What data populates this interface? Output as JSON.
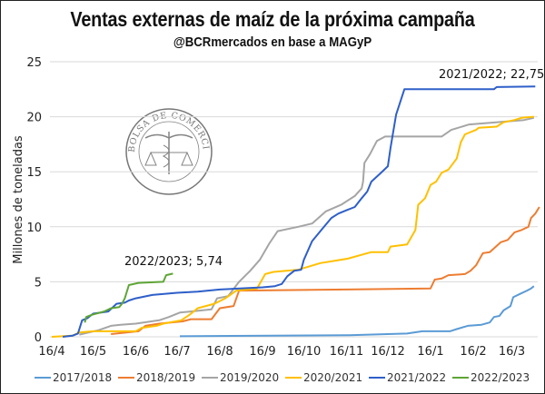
{
  "chart_data": {
    "type": "line",
    "title": "Ventas externas de maíz de la próxima campaña",
    "subtitle": "@BCRmercados en base a MAGyP",
    "ylabel": "Millones de toneladas",
    "xlabel": "",
    "ylim": [
      0,
      25
    ],
    "yticks": [
      "0",
      "5",
      "10",
      "15",
      "20",
      "25"
    ],
    "xticks": [
      "16/4",
      "16/5",
      "16/6",
      "16/7",
      "16/8",
      "16/9",
      "16/10",
      "16/11",
      "16/12",
      "16/1",
      "16/2",
      "16/3"
    ],
    "grid": true,
    "legend": "bottom",
    "logo_text": "BOLSA DE COMERCIO DE ROSARIO",
    "annotations": [
      {
        "text": "2021/2022; 22,75",
        "series": "2021/2022"
      },
      {
        "text": "2022/2023; 5,74",
        "series": "2022/2023"
      }
    ],
    "series": [
      {
        "name": "2017/2018",
        "color": "#5b9bd5",
        "points": [
          [
            "18/7",
            0.05
          ],
          [
            "18/11",
            0.15
          ],
          [
            "30/12",
            0.3
          ],
          [
            "10/1",
            0.5
          ],
          [
            "30/1",
            0.5
          ],
          [
            "4/2",
            0.7
          ],
          [
            "12/2",
            1.0
          ],
          [
            "22/2",
            1.1
          ],
          [
            "28/2",
            1.3
          ],
          [
            "3/3",
            1.8
          ],
          [
            "7/3",
            1.9
          ],
          [
            "10/3",
            2.4
          ],
          [
            "15/3",
            2.8
          ],
          [
            "17/3",
            3.6
          ],
          [
            "22/3",
            3.9
          ],
          [
            "27/3",
            4.2
          ],
          [
            "30/3",
            4.4
          ],
          [
            "1/4",
            4.6
          ]
        ]
      },
      {
        "name": "2018/2019",
        "color": "#ed7d31",
        "points": [
          [
            "29/5",
            0.25
          ],
          [
            "18/6",
            0.5
          ],
          [
            "23/6",
            1.0
          ],
          [
            "3/7",
            1.2
          ],
          [
            "20/7",
            1.4
          ],
          [
            "26/7",
            1.6
          ],
          [
            "10/8",
            1.6
          ],
          [
            "16/8",
            2.6
          ],
          [
            "26/8",
            2.8
          ],
          [
            "30/8",
            4.2
          ],
          [
            "15/11",
            4.3
          ],
          [
            "16/1",
            4.4
          ],
          [
            "19/1",
            5.2
          ],
          [
            "24/1",
            5.3
          ],
          [
            "29/1",
            5.6
          ],
          [
            "10/2",
            5.7
          ],
          [
            "14/2",
            6.0
          ],
          [
            "18/2",
            6.5
          ],
          [
            "23/2",
            7.6
          ],
          [
            "28/2",
            7.7
          ],
          [
            "8/3",
            8.6
          ],
          [
            "13/3",
            8.8
          ],
          [
            "18/3",
            9.5
          ],
          [
            "23/3",
            9.7
          ],
          [
            "28/3",
            10.0
          ],
          [
            "30/3",
            10.8
          ],
          [
            "2/4",
            11.2
          ],
          [
            "5/4",
            11.8
          ]
        ]
      },
      {
        "name": "2019/2020",
        "color": "#a5a5a5",
        "points": [
          [
            "6/5",
            0.2
          ],
          [
            "20/5",
            0.6
          ],
          [
            "29/5",
            1.0
          ],
          [
            "5/6",
            1.1
          ],
          [
            "16/6",
            1.2
          ],
          [
            "3/7",
            1.5
          ],
          [
            "10/7",
            1.8
          ],
          [
            "18/7",
            2.2
          ],
          [
            "26/7",
            2.3
          ],
          [
            "10/8",
            2.5
          ],
          [
            "14/8",
            3.5
          ],
          [
            "22/8",
            3.7
          ],
          [
            "30/8",
            5.0
          ],
          [
            "7/9",
            6.0
          ],
          [
            "14/9",
            7.0
          ],
          [
            "21/9",
            8.5
          ],
          [
            "27/9",
            9.6
          ],
          [
            "12/10",
            10.0
          ],
          [
            "22/10",
            10.3
          ],
          [
            "1/11",
            11.4
          ],
          [
            "12/11",
            12.0
          ],
          [
            "22/11",
            12.8
          ],
          [
            "27/11",
            13.5
          ],
          [
            "28/11",
            14.1
          ],
          [
            "29/11",
            15.8
          ],
          [
            "3/12",
            16.6
          ],
          [
            "8/12",
            17.8
          ],
          [
            "14/12",
            18.2
          ],
          [
            "24/1",
            18.2
          ],
          [
            "31/1",
            18.8
          ],
          [
            "13/2",
            19.3
          ],
          [
            "25/3",
            19.7
          ],
          [
            "1/4",
            19.9
          ]
        ]
      },
      {
        "name": "2020/2021",
        "color": "#ffc000",
        "points": [
          [
            "16/4",
            0.0
          ],
          [
            "1/5",
            0.1
          ],
          [
            "6/5",
            0.4
          ],
          [
            "16/5",
            0.5
          ],
          [
            "16/6",
            0.5
          ],
          [
            "20/6",
            0.8
          ],
          [
            "1/7",
            1.0
          ],
          [
            "6/7",
            1.2
          ],
          [
            "19/7",
            1.5
          ],
          [
            "25/7",
            2.0
          ],
          [
            "31/7",
            2.6
          ],
          [
            "12/8",
            3.0
          ],
          [
            "20/8",
            3.5
          ],
          [
            "28/8",
            4.2
          ],
          [
            "12/9",
            4.4
          ],
          [
            "18/9",
            5.7
          ],
          [
            "24/9",
            5.9
          ],
          [
            "12/10",
            6.1
          ],
          [
            "20/10",
            6.4
          ],
          [
            "28/10",
            6.7
          ],
          [
            "17/11",
            7.1
          ],
          [
            "4/12",
            7.7
          ],
          [
            "16/12",
            7.7
          ],
          [
            "18/12",
            8.2
          ],
          [
            "30/12",
            8.4
          ],
          [
            "5/1",
            9.7
          ],
          [
            "7/1",
            12.0
          ],
          [
            "12/1",
            12.6
          ],
          [
            "16/1",
            13.8
          ],
          [
            "20/1",
            14.1
          ],
          [
            "24/1",
            14.9
          ],
          [
            "29/1",
            15.2
          ],
          [
            "4/2",
            16.2
          ],
          [
            "7/2",
            17.7
          ],
          [
            "10/2",
            18.4
          ],
          [
            "18/2",
            18.8
          ],
          [
            "20/2",
            19.0
          ],
          [
            "5/3",
            19.1
          ],
          [
            "10/3",
            19.5
          ],
          [
            "18/3",
            19.7
          ],
          [
            "23/3",
            19.9
          ],
          [
            "1/4",
            20.0
          ]
        ]
      },
      {
        "name": "2021/2022",
        "color": "#2e5fc9",
        "points": [
          [
            "24/4",
            0.0
          ],
          [
            "1/5",
            0.1
          ],
          [
            "5/5",
            0.3
          ],
          [
            "8/5",
            1.5
          ],
          [
            "12/5",
            1.7
          ],
          [
            "16/5",
            2.1
          ],
          [
            "27/5",
            2.3
          ],
          [
            "2/6",
            3.0
          ],
          [
            "8/6",
            3.1
          ],
          [
            "11/6",
            3.3
          ],
          [
            "16/6",
            3.5
          ],
          [
            "28/6",
            3.8
          ],
          [
            "16/7",
            4.0
          ],
          [
            "31/7",
            4.1
          ],
          [
            "16/8",
            4.3
          ],
          [
            "16/9",
            4.5
          ],
          [
            "25/9",
            4.6
          ],
          [
            "30/9",
            4.8
          ],
          [
            "4/10",
            5.5
          ],
          [
            "9/10",
            6.0
          ],
          [
            "14/10",
            6.1
          ],
          [
            "16/10",
            7.0
          ],
          [
            "22/10",
            8.7
          ],
          [
            "30/10",
            9.9
          ],
          [
            "5/11",
            10.8
          ],
          [
            "10/11",
            11.2
          ],
          [
            "16/11",
            11.5
          ],
          [
            "22/11",
            11.8
          ],
          [
            "27/11",
            12.6
          ],
          [
            "1/12",
            13.2
          ],
          [
            "4/12",
            14.1
          ],
          [
            "11/12",
            14.9
          ],
          [
            "16/12",
            15.5
          ],
          [
            "18/12",
            17.2
          ],
          [
            "22/12",
            20.2
          ],
          [
            "28/12",
            22.5
          ],
          [
            "3/3",
            22.5
          ],
          [
            "5/3",
            22.7
          ],
          [
            "2/4",
            22.75
          ]
        ]
      },
      {
        "name": "2022/2023",
        "color": "#5ea536",
        "points": [
          [
            "10/5",
            1.3
          ],
          [
            "11/5",
            1.8
          ],
          [
            "15/5",
            2.0
          ],
          [
            "24/5",
            2.3
          ],
          [
            "29/5",
            2.6
          ],
          [
            "4/6",
            2.7
          ],
          [
            "6/6",
            3.0
          ],
          [
            "8/6",
            3.5
          ],
          [
            "11/6",
            4.7
          ],
          [
            "18/6",
            4.9
          ],
          [
            "6/7",
            5.0
          ],
          [
            "8/7",
            5.6
          ],
          [
            "13/7",
            5.74
          ]
        ]
      }
    ]
  }
}
